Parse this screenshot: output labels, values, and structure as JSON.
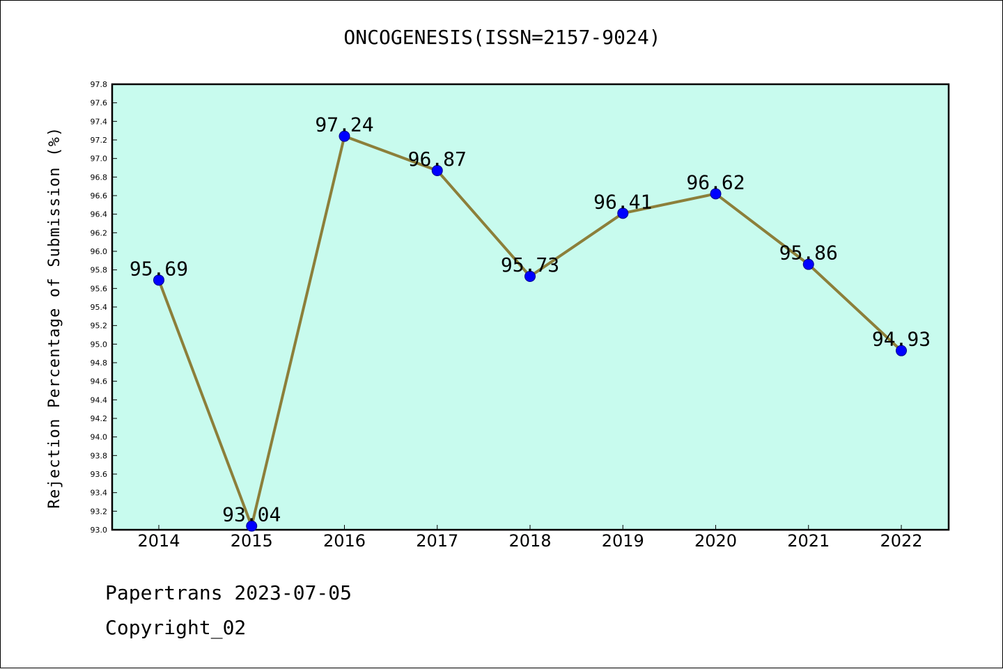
{
  "chart_data": {
    "type": "line",
    "title": "ONCOGENESIS(ISSN=2157-9024)",
    "xlabel": "",
    "ylabel": "Rejection Percentage of Submission (%)",
    "categories": [
      "2014",
      "2015",
      "2016",
      "2017",
      "2018",
      "2019",
      "2020",
      "2021",
      "2022"
    ],
    "series": [
      {
        "values": [
          95.69,
          93.04,
          97.24,
          96.87,
          95.73,
          96.41,
          96.62,
          95.86,
          94.93
        ],
        "labels": [
          "95.69",
          "93.04",
          "97.24",
          "96.87",
          "95.73",
          "96.41",
          "96.62",
          "95.86",
          "94.93"
        ]
      }
    ],
    "ylim": [
      93.0,
      97.8
    ],
    "yticks": [
      "93.0",
      "93.2",
      "93.4",
      "93.6",
      "93.8",
      "94.0",
      "94.2",
      "94.4",
      "94.6",
      "94.8",
      "95.0",
      "95.2",
      "95.4",
      "95.6",
      "95.8",
      "96.0",
      "96.2",
      "96.4",
      "96.6",
      "96.8",
      "97.0",
      "97.2",
      "97.4",
      "97.6",
      "97.8"
    ],
    "grid": false,
    "colors": {
      "plot_background": "#c8fbee",
      "line": "#8c7f3a",
      "marker": "#0000ff"
    }
  },
  "footer": {
    "line1": "Papertrans 2023-07-05",
    "line2": "Copyright_02"
  }
}
